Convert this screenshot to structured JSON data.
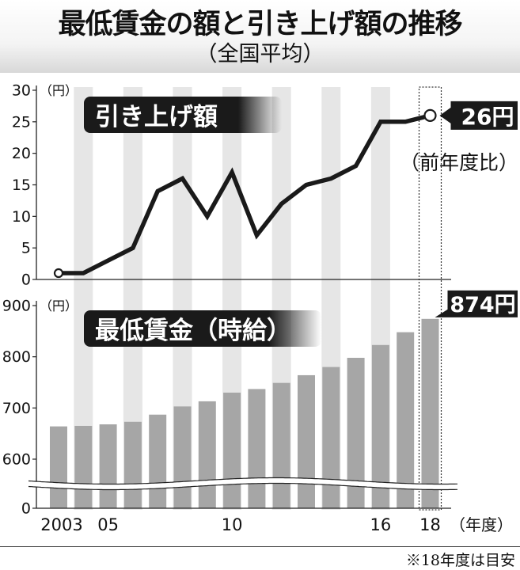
{
  "title": "最低賃金の額と引き上げ額の推移",
  "subtitle": "（全国平均）",
  "footnote": "※18年度は目安",
  "x_unit": "（年度）",
  "colors": {
    "bar": "#a6a6a6",
    "stripe": "#e6e6e6",
    "line": "#1a1a1a",
    "label_bg": "#1a1a1a",
    "highlight_border": "#333333"
  },
  "chart_data": [
    {
      "type": "line",
      "panel_label": "引き上げ額",
      "y_unit": "（円）",
      "ylim": [
        0,
        30
      ],
      "yticks": [
        0,
        5,
        10,
        15,
        20,
        25,
        30
      ],
      "x": [
        2003,
        2004,
        2005,
        2006,
        2007,
        2008,
        2009,
        2010,
        2011,
        2012,
        2013,
        2014,
        2015,
        2016,
        2017,
        2018
      ],
      "values": [
        1,
        1,
        3,
        5,
        14,
        16,
        10,
        17,
        7,
        12,
        15,
        16,
        18,
        25,
        25,
        26
      ],
      "callout": "26円",
      "callout_note": "（前年度比）"
    },
    {
      "type": "bar",
      "panel_label": "最低賃金（時給）",
      "y_unit": "（円）",
      "ylim": [
        0,
        900
      ],
      "yticks": [
        0,
        600,
        700,
        800,
        900
      ],
      "axis_break": true,
      "x": [
        2003,
        2004,
        2005,
        2006,
        2007,
        2008,
        2009,
        2010,
        2011,
        2012,
        2013,
        2014,
        2015,
        2016,
        2017,
        2018
      ],
      "values": [
        664,
        665,
        668,
        673,
        687,
        703,
        713,
        730,
        737,
        749,
        764,
        780,
        798,
        823,
        848,
        874
      ],
      "callout": "874円"
    }
  ],
  "xticks": [
    {
      "year": 2003,
      "label": "2003"
    },
    {
      "year": 2005,
      "label": "05"
    },
    {
      "year": 2010,
      "label": "10"
    },
    {
      "year": 2016,
      "label": "16"
    },
    {
      "year": 2018,
      "label": "18"
    }
  ]
}
